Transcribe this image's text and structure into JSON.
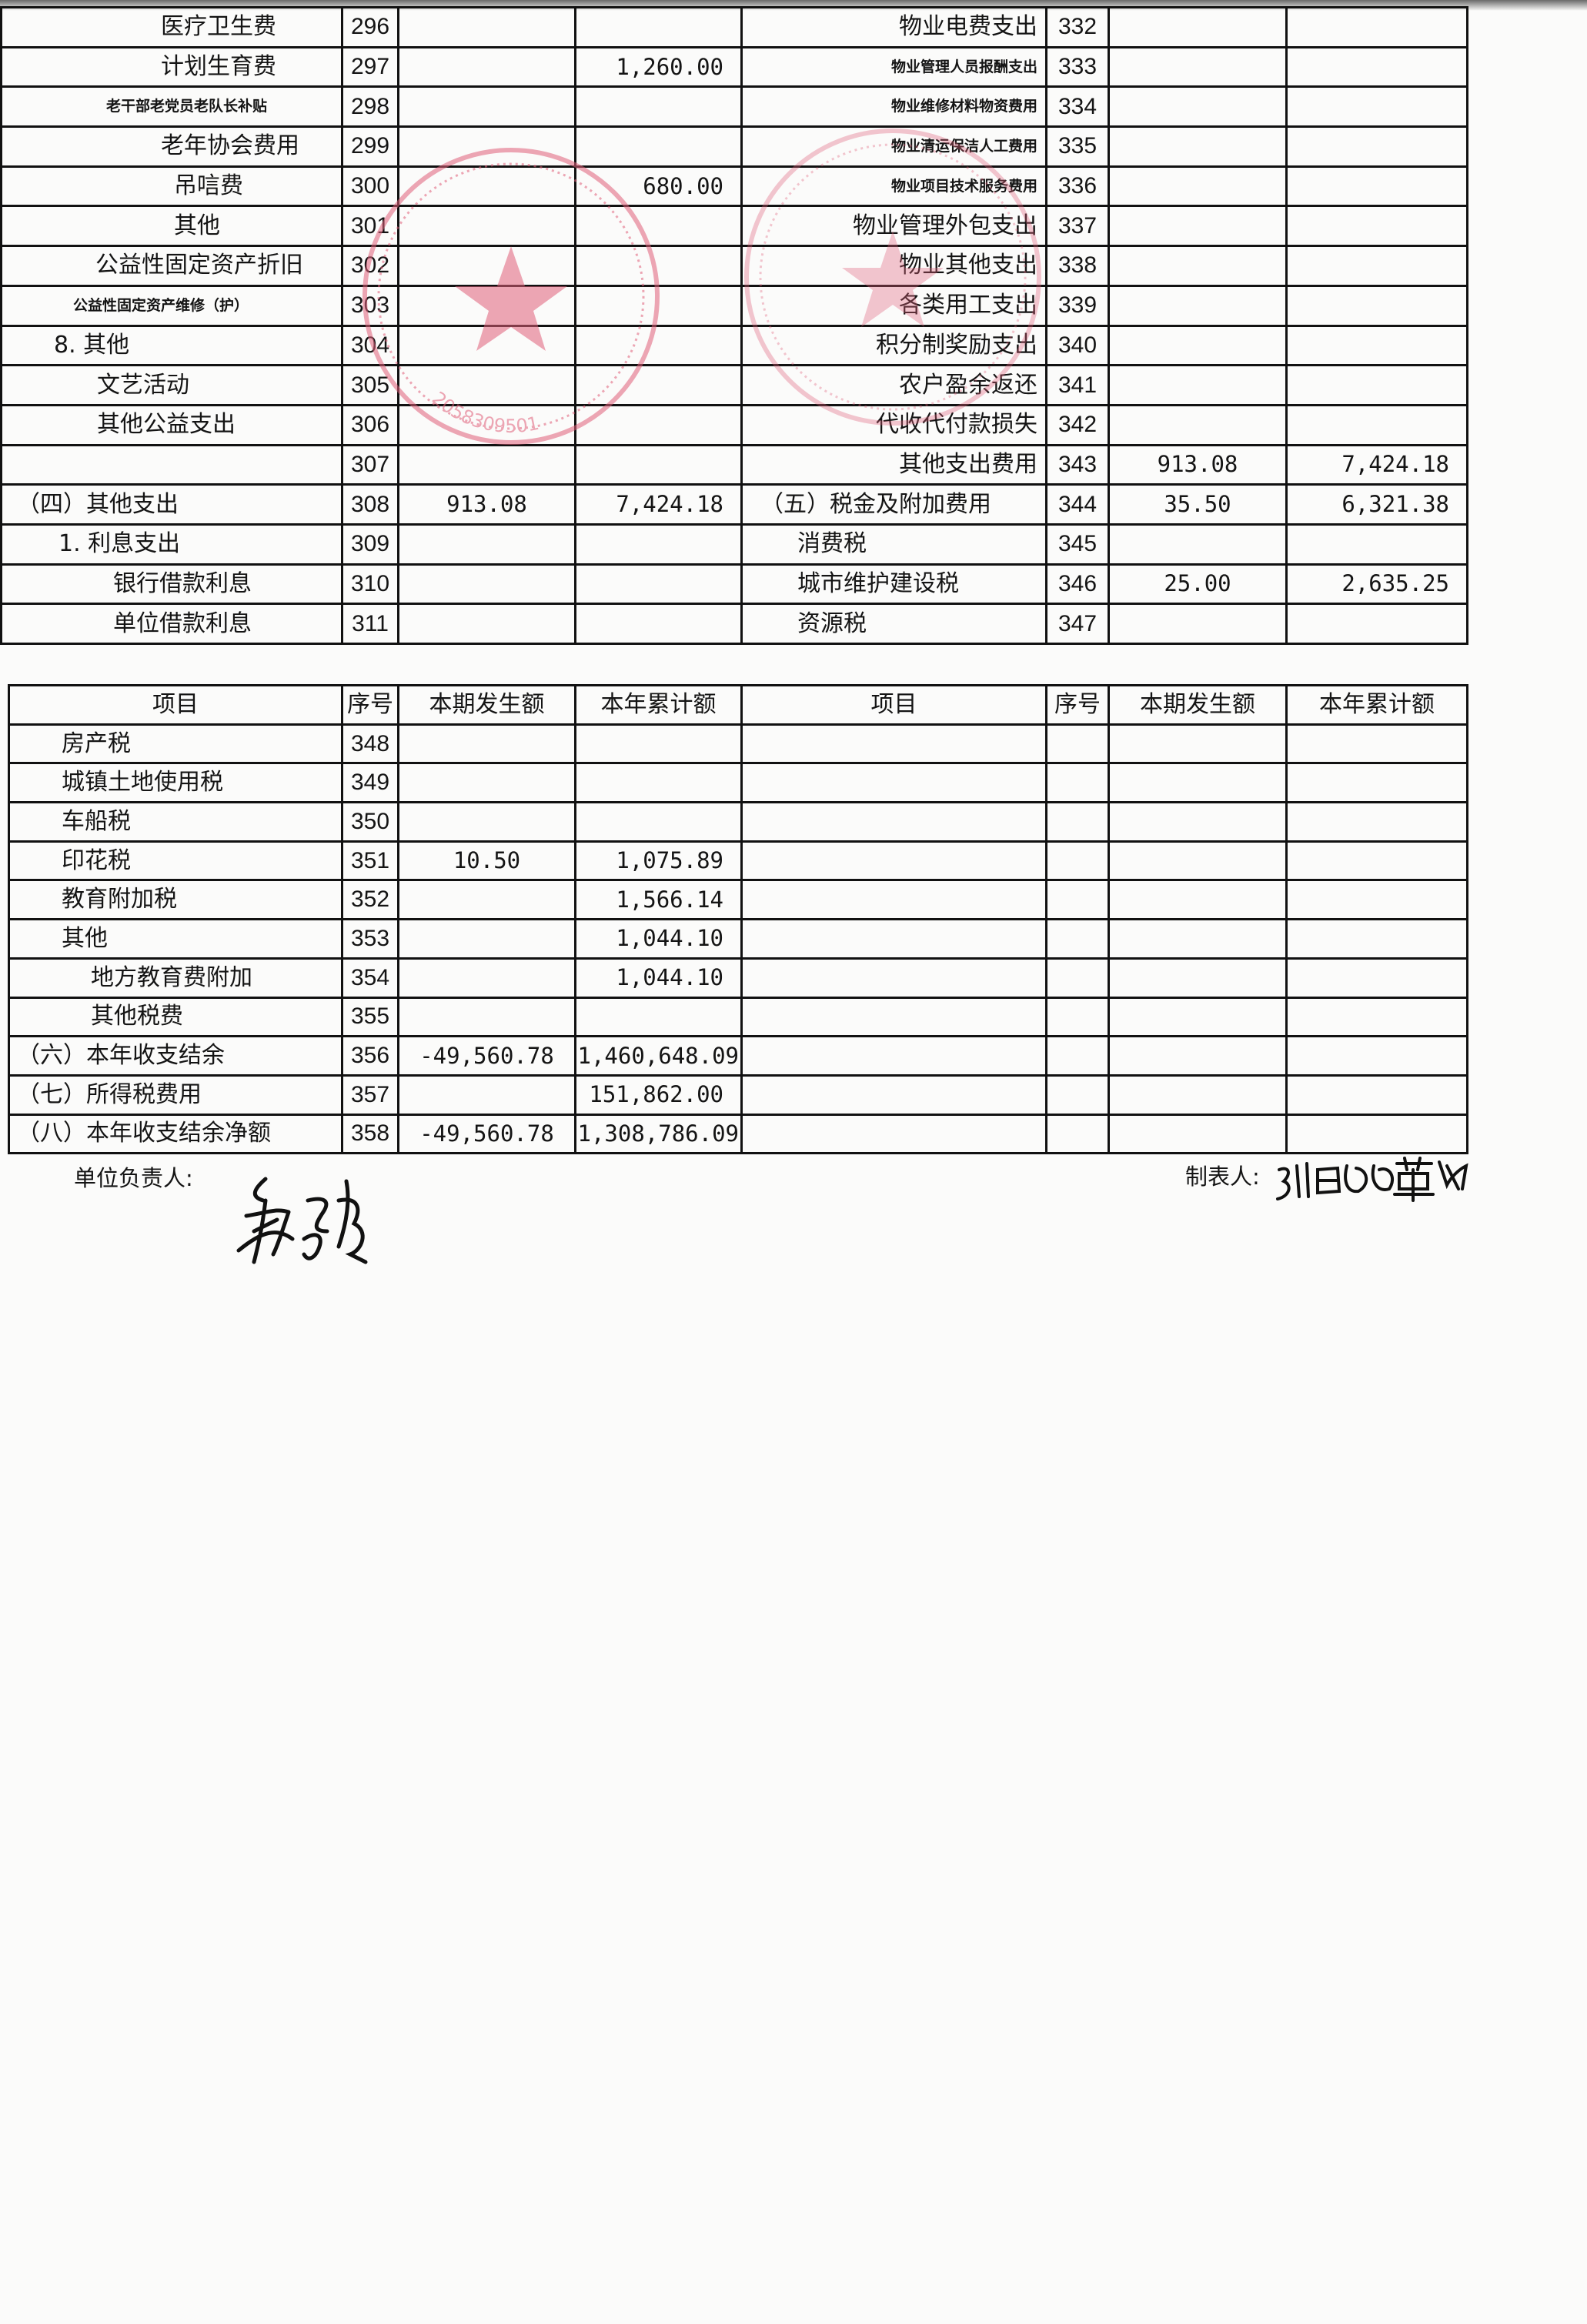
{
  "top_table": {
    "left_rows": [
      {
        "item": "医疗卫生费",
        "seq": "296",
        "current": "",
        "annual": ""
      },
      {
        "item": "计划生育费",
        "seq": "297",
        "current": "",
        "annual": "1,260.00"
      },
      {
        "item": "老干部老党员老队长补贴",
        "seq": "298",
        "current": "",
        "annual": ""
      },
      {
        "item": "老年协会费用",
        "seq": "299",
        "current": "",
        "annual": ""
      },
      {
        "item": "吊唁费",
        "seq": "300",
        "current": "",
        "annual": "680.00"
      },
      {
        "item": "其他",
        "seq": "301",
        "current": "",
        "annual": ""
      },
      {
        "item": "公益性固定资产折旧",
        "seq": "302",
        "current": "",
        "annual": ""
      },
      {
        "item": "公益性固定资产维修（护）",
        "seq": "303",
        "current": "",
        "annual": ""
      },
      {
        "item": "8. 其他",
        "seq": "304",
        "current": "",
        "annual": ""
      },
      {
        "item": "文艺活动",
        "seq": "305",
        "current": "",
        "annual": ""
      },
      {
        "item": "其他公益支出",
        "seq": "306",
        "current": "",
        "annual": ""
      },
      {
        "item": "",
        "seq": "307",
        "current": "",
        "annual": ""
      },
      {
        "item": "（四）其他支出",
        "seq": "308",
        "current": "913.08",
        "annual": "7,424.18"
      },
      {
        "item": "1. 利息支出",
        "seq": "309",
        "current": "",
        "annual": ""
      },
      {
        "item": "银行借款利息",
        "seq": "310",
        "current": "",
        "annual": ""
      },
      {
        "item": "单位借款利息",
        "seq": "311",
        "current": "",
        "annual": ""
      }
    ],
    "right_rows": [
      {
        "item": "物业电费支出",
        "seq": "332",
        "current": "",
        "annual": ""
      },
      {
        "item": "物业管理人员报酬支出",
        "seq": "333",
        "current": "",
        "annual": ""
      },
      {
        "item": "物业维修材料物资费用",
        "seq": "334",
        "current": "",
        "annual": ""
      },
      {
        "item": "物业清运保洁人工费用",
        "seq": "335",
        "current": "",
        "annual": ""
      },
      {
        "item": "物业项目技术服务费用",
        "seq": "336",
        "current": "",
        "annual": ""
      },
      {
        "item": "物业管理外包支出",
        "seq": "337",
        "current": "",
        "annual": ""
      },
      {
        "item": "物业其他支出",
        "seq": "338",
        "current": "",
        "annual": ""
      },
      {
        "item": "各类用工支出",
        "seq": "339",
        "current": "",
        "annual": ""
      },
      {
        "item": "积分制奖励支出",
        "seq": "340",
        "current": "",
        "annual": ""
      },
      {
        "item": "农户盈余返还",
        "seq": "341",
        "current": "",
        "annual": ""
      },
      {
        "item": "代收代付款损失",
        "seq": "342",
        "current": "",
        "annual": ""
      },
      {
        "item": "其他支出费用",
        "seq": "343",
        "current": "913.08",
        "annual": "7,424.18"
      },
      {
        "item": "（五）税金及附加费用",
        "seq": "344",
        "current": "35.50",
        "annual": "6,321.38"
      },
      {
        "item": "消费税",
        "seq": "345",
        "current": "",
        "annual": ""
      },
      {
        "item": "城市维护建设税",
        "seq": "346",
        "current": "25.00",
        "annual": "2,635.25"
      },
      {
        "item": "资源税",
        "seq": "347",
        "current": "",
        "annual": ""
      }
    ]
  },
  "bottom_table": {
    "headers": [
      "项目",
      "序号",
      "本期发生额",
      "本年累计额",
      "项目",
      "序号",
      "本期发生额",
      "本年累计额"
    ],
    "rows": [
      {
        "item": "房产税",
        "seq": "348",
        "current": "",
        "annual": ""
      },
      {
        "item": "城镇土地使用税",
        "seq": "349",
        "current": "",
        "annual": ""
      },
      {
        "item": "车船税",
        "seq": "350",
        "current": "",
        "annual": ""
      },
      {
        "item": "印花税",
        "seq": "351",
        "current": "10.50",
        "annual": "1,075.89"
      },
      {
        "item": "教育附加税",
        "seq": "352",
        "current": "",
        "annual": "1,566.14"
      },
      {
        "item": "其他",
        "seq": "353",
        "current": "",
        "annual": "1,044.10"
      },
      {
        "item": "地方教育费附加",
        "seq": "354",
        "current": "",
        "annual": "1,044.10"
      },
      {
        "item": "其他税费",
        "seq": "355",
        "current": "",
        "annual": ""
      },
      {
        "item": "（六）本年收支结余",
        "seq": "356",
        "current": "-49,560.78",
        "annual": "1,460,648.09"
      },
      {
        "item": "（七）所得税费用",
        "seq": "357",
        "current": "",
        "annual": "151,862.00"
      },
      {
        "item": "（八）本年收支结余净额",
        "seq": "358",
        "current": "-49,560.78",
        "annual": "1,308,786.09"
      }
    ]
  },
  "footer": {
    "unit_head_label": "单位负责人:",
    "preparer_label": "制表人:"
  },
  "seal": {
    "color": "#e0607a",
    "left_seal_number": "2058309501"
  }
}
